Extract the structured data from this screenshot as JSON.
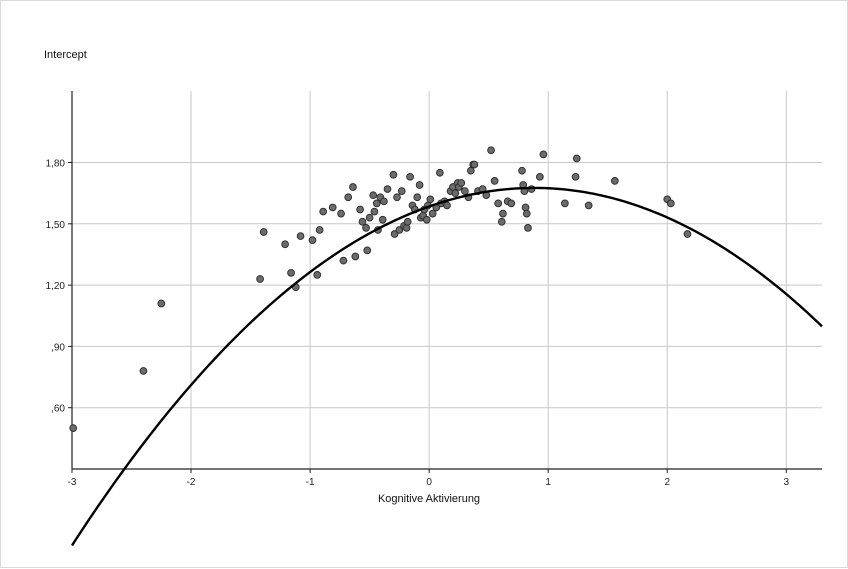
{
  "chart_data": {
    "type": "scatter",
    "ylabel": "Intercept",
    "xlabel": "Kognitive Aktivierung",
    "xlim": [
      -3.0,
      3.3
    ],
    "ylim": [
      0.3,
      2.15
    ],
    "x_ticks": [
      -3,
      -2,
      -1,
      0,
      1,
      2,
      3
    ],
    "x_tick_labels": [
      "-3",
      "-2",
      "-1",
      "0",
      "1",
      "2",
      "3"
    ],
    "y_ticks": [
      0.6,
      0.9,
      1.2,
      1.5,
      1.8
    ],
    "y_tick_labels": [
      ",60",
      ",90",
      "1,20",
      "1,50",
      "1,80"
    ],
    "grid": true,
    "fit_line": {
      "type": "quadratic",
      "a": -0.116,
      "b": 0.205,
      "c": 1.585
    },
    "points": [
      [
        -2.99,
        0.5
      ],
      [
        -2.4,
        0.78
      ],
      [
        -2.25,
        1.11
      ],
      [
        -1.42,
        1.23
      ],
      [
        -1.39,
        1.46
      ],
      [
        -1.21,
        1.4
      ],
      [
        -1.16,
        1.26
      ],
      [
        -1.12,
        1.19
      ],
      [
        -1.08,
        1.44
      ],
      [
        -0.98,
        1.42
      ],
      [
        -0.94,
        1.25
      ],
      [
        -0.92,
        1.47
      ],
      [
        -0.89,
        1.56
      ],
      [
        -0.81,
        1.58
      ],
      [
        -0.74,
        1.55
      ],
      [
        -0.72,
        1.32
      ],
      [
        -0.68,
        1.63
      ],
      [
        -0.64,
        1.68
      ],
      [
        -0.62,
        1.34
      ],
      [
        -0.58,
        1.57
      ],
      [
        -0.56,
        1.51
      ],
      [
        -0.53,
        1.48
      ],
      [
        -0.52,
        1.37
      ],
      [
        -0.5,
        1.53
      ],
      [
        -0.47,
        1.64
      ],
      [
        -0.46,
        1.56
      ],
      [
        -0.44,
        1.6
      ],
      [
        -0.43,
        1.47
      ],
      [
        -0.41,
        1.63
      ],
      [
        -0.39,
        1.52
      ],
      [
        -0.38,
        1.61
      ],
      [
        -0.35,
        1.67
      ],
      [
        -0.3,
        1.74
      ],
      [
        -0.29,
        1.45
      ],
      [
        -0.27,
        1.63
      ],
      [
        -0.25,
        1.47
      ],
      [
        -0.23,
        1.66
      ],
      [
        -0.21,
        1.49
      ],
      [
        -0.19,
        1.48
      ],
      [
        -0.18,
        1.51
      ],
      [
        -0.16,
        1.73
      ],
      [
        -0.14,
        1.59
      ],
      [
        -0.12,
        1.57
      ],
      [
        -0.1,
        1.63
      ],
      [
        -0.08,
        1.69
      ],
      [
        -0.07,
        1.53
      ],
      [
        -0.05,
        1.54
      ],
      [
        -0.04,
        1.57
      ],
      [
        -0.02,
        1.52
      ],
      [
        -0.01,
        1.59
      ],
      [
        0.01,
        1.62
      ],
      [
        0.03,
        1.55
      ],
      [
        0.06,
        1.58
      ],
      [
        0.09,
        1.75
      ],
      [
        0.1,
        1.6
      ],
      [
        0.13,
        1.61
      ],
      [
        0.15,
        1.59
      ],
      [
        0.18,
        1.66
      ],
      [
        0.2,
        1.68
      ],
      [
        0.22,
        1.65
      ],
      [
        0.24,
        1.7
      ],
      [
        0.25,
        1.68
      ],
      [
        0.27,
        1.7
      ],
      [
        0.3,
        1.66
      ],
      [
        0.33,
        1.63
      ],
      [
        0.35,
        1.76
      ],
      [
        0.37,
        1.79
      ],
      [
        0.38,
        1.79
      ],
      [
        0.41,
        1.66
      ],
      [
        0.45,
        1.67
      ],
      [
        0.48,
        1.64
      ],
      [
        0.52,
        1.86
      ],
      [
        0.55,
        1.71
      ],
      [
        0.58,
        1.6
      ],
      [
        0.61,
        1.51
      ],
      [
        0.62,
        1.55
      ],
      [
        0.66,
        1.61
      ],
      [
        0.69,
        1.6
      ],
      [
        0.78,
        1.76
      ],
      [
        0.79,
        1.69
      ],
      [
        0.8,
        1.66
      ],
      [
        0.81,
        1.58
      ],
      [
        0.82,
        1.55
      ],
      [
        0.83,
        1.48
      ],
      [
        0.86,
        1.67
      ],
      [
        0.93,
        1.73
      ],
      [
        0.96,
        1.84
      ],
      [
        1.14,
        1.6
      ],
      [
        1.23,
        1.73
      ],
      [
        1.24,
        1.82
      ],
      [
        1.34,
        1.59
      ],
      [
        1.56,
        1.71
      ],
      [
        2.0,
        1.62
      ],
      [
        2.03,
        1.6
      ],
      [
        2.17,
        1.45
      ]
    ]
  }
}
